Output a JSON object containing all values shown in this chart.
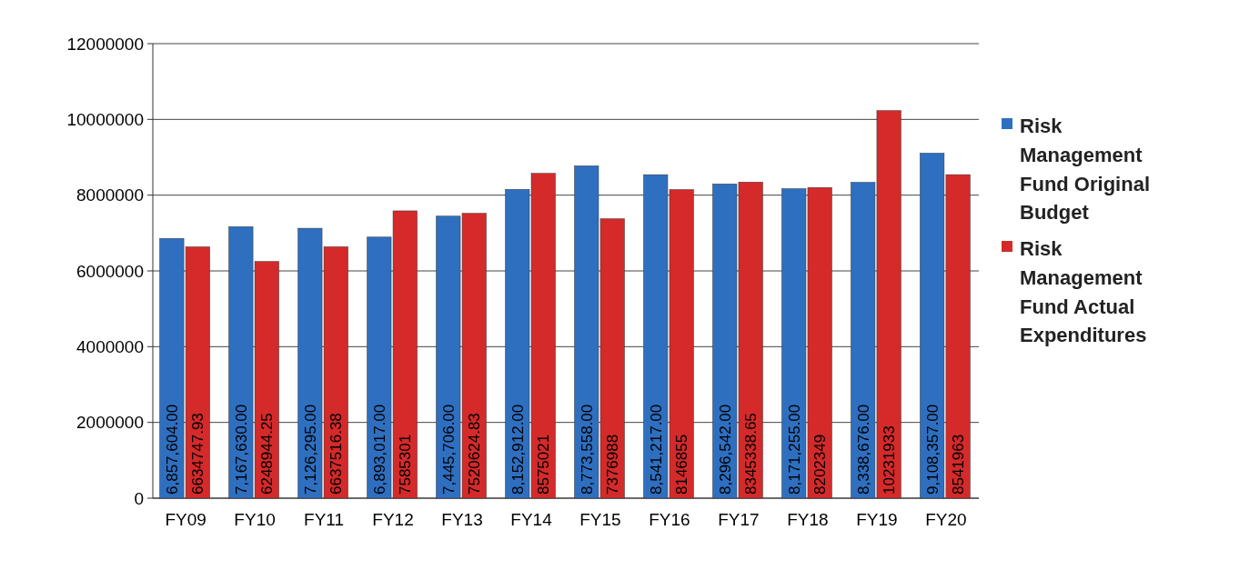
{
  "chart_data": {
    "type": "bar",
    "categories": [
      "FY09",
      "FY10",
      "FY11",
      "FY12",
      "FY13",
      "FY14",
      "FY15",
      "FY16",
      "FY17",
      "FY18",
      "FY19",
      "FY20"
    ],
    "series": [
      {
        "name": "Risk Management Fund Original Budget",
        "color": "#2e6fc0",
        "values": [
          6857604,
          7167630,
          7126295,
          6893017,
          7445706,
          8152912,
          8773558,
          8541217,
          8296542,
          8171255,
          8338676,
          9108357
        ],
        "value_labels": [
          "6,857,604.00",
          "7,167,630.00",
          "7,126,295.00",
          "6,893,017.00",
          "7,445,706.00",
          "8,152,912.00",
          "8,773,558.00",
          "8,541,217.00",
          "8,296,542.00",
          "8,171,255.00",
          "8,338,676.00",
          "9,108,357.00"
        ]
      },
      {
        "name": "Risk Management Fund Actual Expenditures",
        "color": "#d42a2a",
        "values": [
          6634747.93,
          6248944.25,
          6637516.38,
          7585301,
          7520624.83,
          8575021,
          7376988,
          8146855,
          8345338.65,
          8202349,
          10231933,
          8541963
        ],
        "value_labels": [
          "6634747.93",
          "6248944.25",
          "6637516.38",
          "7585301",
          "7520624.83",
          "8575021",
          "7376988",
          "8146855",
          "8345338.65",
          "8202349",
          "10231933",
          "8541963"
        ]
      }
    ],
    "ylim": [
      0,
      12000000
    ],
    "yticks": [
      0,
      2000000,
      4000000,
      6000000,
      8000000,
      10000000,
      12000000
    ],
    "grid": "y",
    "legend": "right"
  }
}
